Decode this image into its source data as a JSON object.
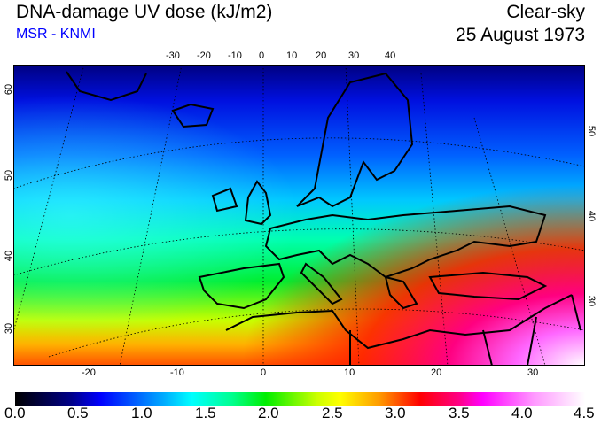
{
  "header": {
    "title": "DNA-damage UV dose (kJ/m2)",
    "source": "MSR - KNMI",
    "condition": "Clear-sky",
    "date": "25 August 1973"
  },
  "map": {
    "top_lon_labels": [
      "-30",
      "-20",
      "-10",
      "0",
      "10",
      "20",
      "30",
      "40"
    ],
    "bottom_lon_labels": [
      "-20",
      "-10",
      "0",
      "10",
      "20",
      "30"
    ],
    "left_lat_labels": [
      "60",
      "50",
      "40",
      "30"
    ],
    "right_lat_labels": [
      "50",
      "40",
      "30"
    ]
  },
  "colorbar": {
    "labels": [
      "0.0",
      "0.5",
      "1.0",
      "1.5",
      "2.0",
      "2.5",
      "3.0",
      "3.5",
      "4.0",
      "4.5"
    ],
    "min": 0.0,
    "max": 4.5,
    "colors": [
      "#000000",
      "#0000ff",
      "#00ffff",
      "#00ee00",
      "#ffff00",
      "#ff0000",
      "#ff00ff",
      "#ffffff"
    ]
  }
}
